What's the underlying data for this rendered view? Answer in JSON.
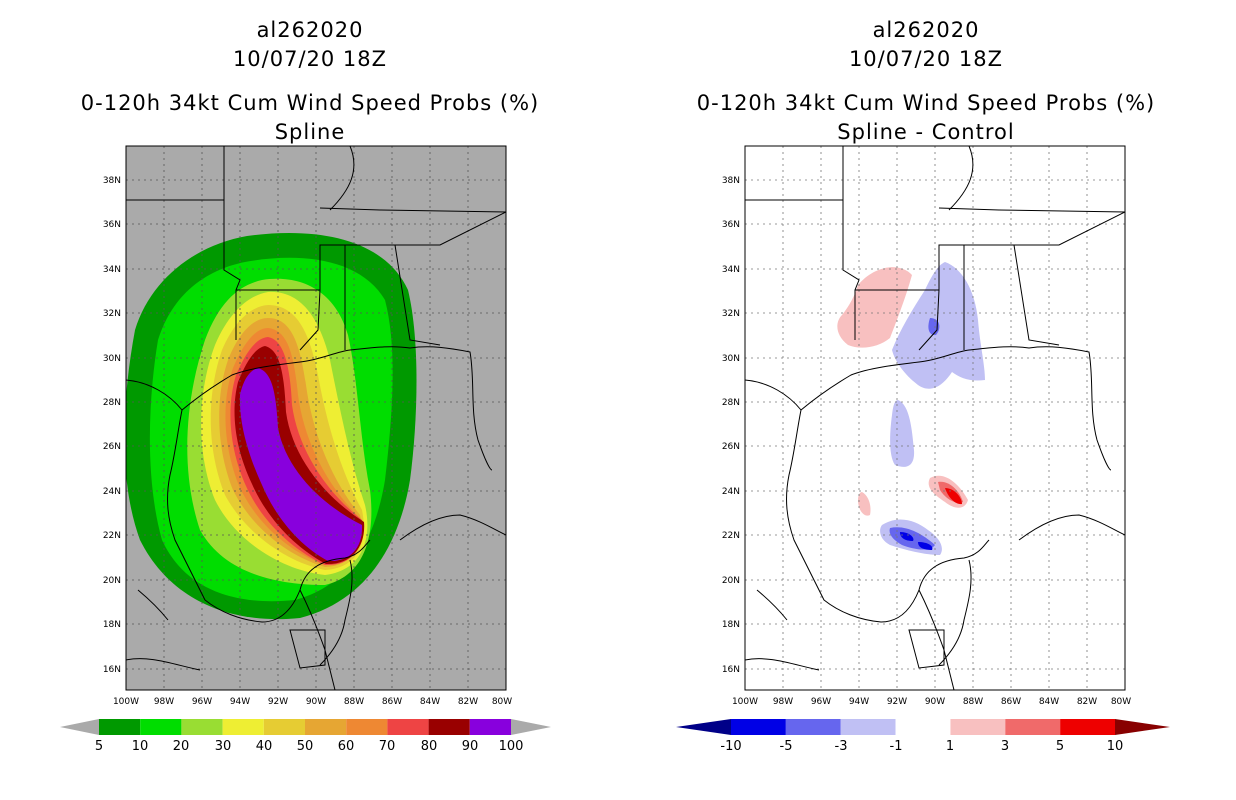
{
  "left_panel": {
    "title_lines": [
      "al262020",
      "10/07/20 18Z",
      "0-120h 34kt Cum Wind Speed Probs (%)",
      "Spline"
    ],
    "colorbar_labels": [
      "5",
      "10",
      "20",
      "30",
      "40",
      "50",
      "60",
      "70",
      "80",
      "90",
      "100"
    ],
    "colorbar_colors": [
      "#009900",
      "#00dd00",
      "#99dd33",
      "#eeee33",
      "#e6cc33",
      "#e6a633",
      "#ee8833",
      "#ee4444",
      "#990000",
      "#8800dd"
    ],
    "background": "#aaaaaa"
  },
  "right_panel": {
    "title_lines": [
      "al262020",
      "10/07/20 18Z",
      "0-120h 34kt Cum Wind Speed Probs (%)",
      "Spline - Control"
    ],
    "colorbar_labels": [
      "-10",
      "-5",
      "-3",
      "-1",
      "1",
      "3",
      "5",
      "10"
    ],
    "colorbar_colors": [
      "#0000e6",
      "#6666ee",
      "#c0c0f4",
      "#ffffff",
      "#f8c0c0",
      "#f06a6a",
      "#ee0000"
    ],
    "background": "#ffffff"
  },
  "lat_labels": [
    "38N",
    "36N",
    "34N",
    "32N",
    "30N",
    "28N",
    "26N",
    "24N",
    "22N",
    "20N",
    "18N",
    "16N"
  ],
  "lon_labels": [
    "100W",
    "98W",
    "96W",
    "94W",
    "92W",
    "90W",
    "88W",
    "86W",
    "84W",
    "82W",
    "80W"
  ]
}
